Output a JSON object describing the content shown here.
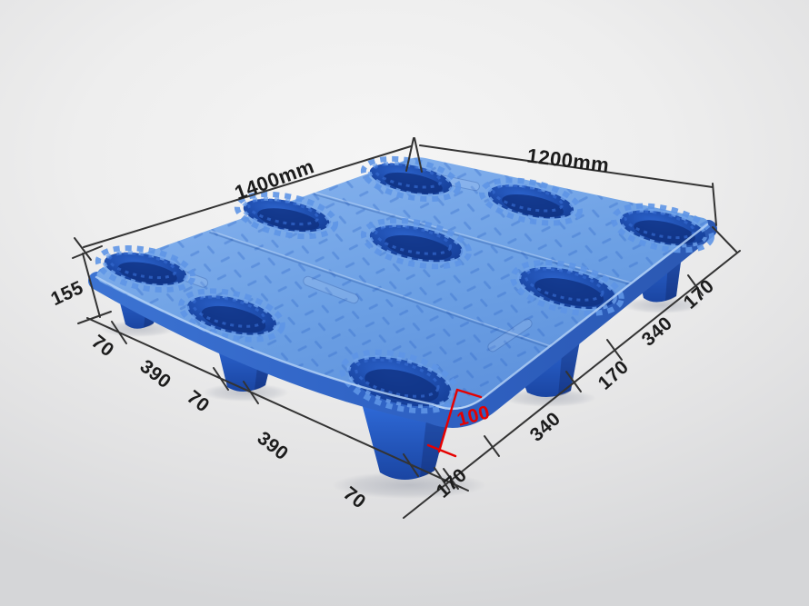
{
  "product_view": {
    "subject": "blue-plastic-pallet"
  },
  "dimensions": {
    "top_left_edge": {
      "label": "1400mm"
    },
    "top_right_edge": {
      "label": "1200mm"
    },
    "left_side_height": {
      "label": "155"
    },
    "foot_height": {
      "label": "100"
    },
    "bottom_left_segments": [
      "70",
      "390",
      "70",
      "390",
      "70"
    ],
    "bottom_right_segments": [
      "170",
      "340",
      "170",
      "340",
      "170"
    ]
  },
  "colors": {
    "deck_top_light": "#84b1ec",
    "deck_top_dark": "#5f93dd",
    "deck_wall": "#2f62c4",
    "cup_hole_dark": "#143e96",
    "cup_hole_light": "#2a5ec8",
    "foot_light": "#2e68d6",
    "foot_dark": "#1b47a5",
    "dimension_line": "#333333",
    "label_text": "#1c1c1c",
    "highlight_red": "#e60000",
    "background": "#ececec"
  }
}
